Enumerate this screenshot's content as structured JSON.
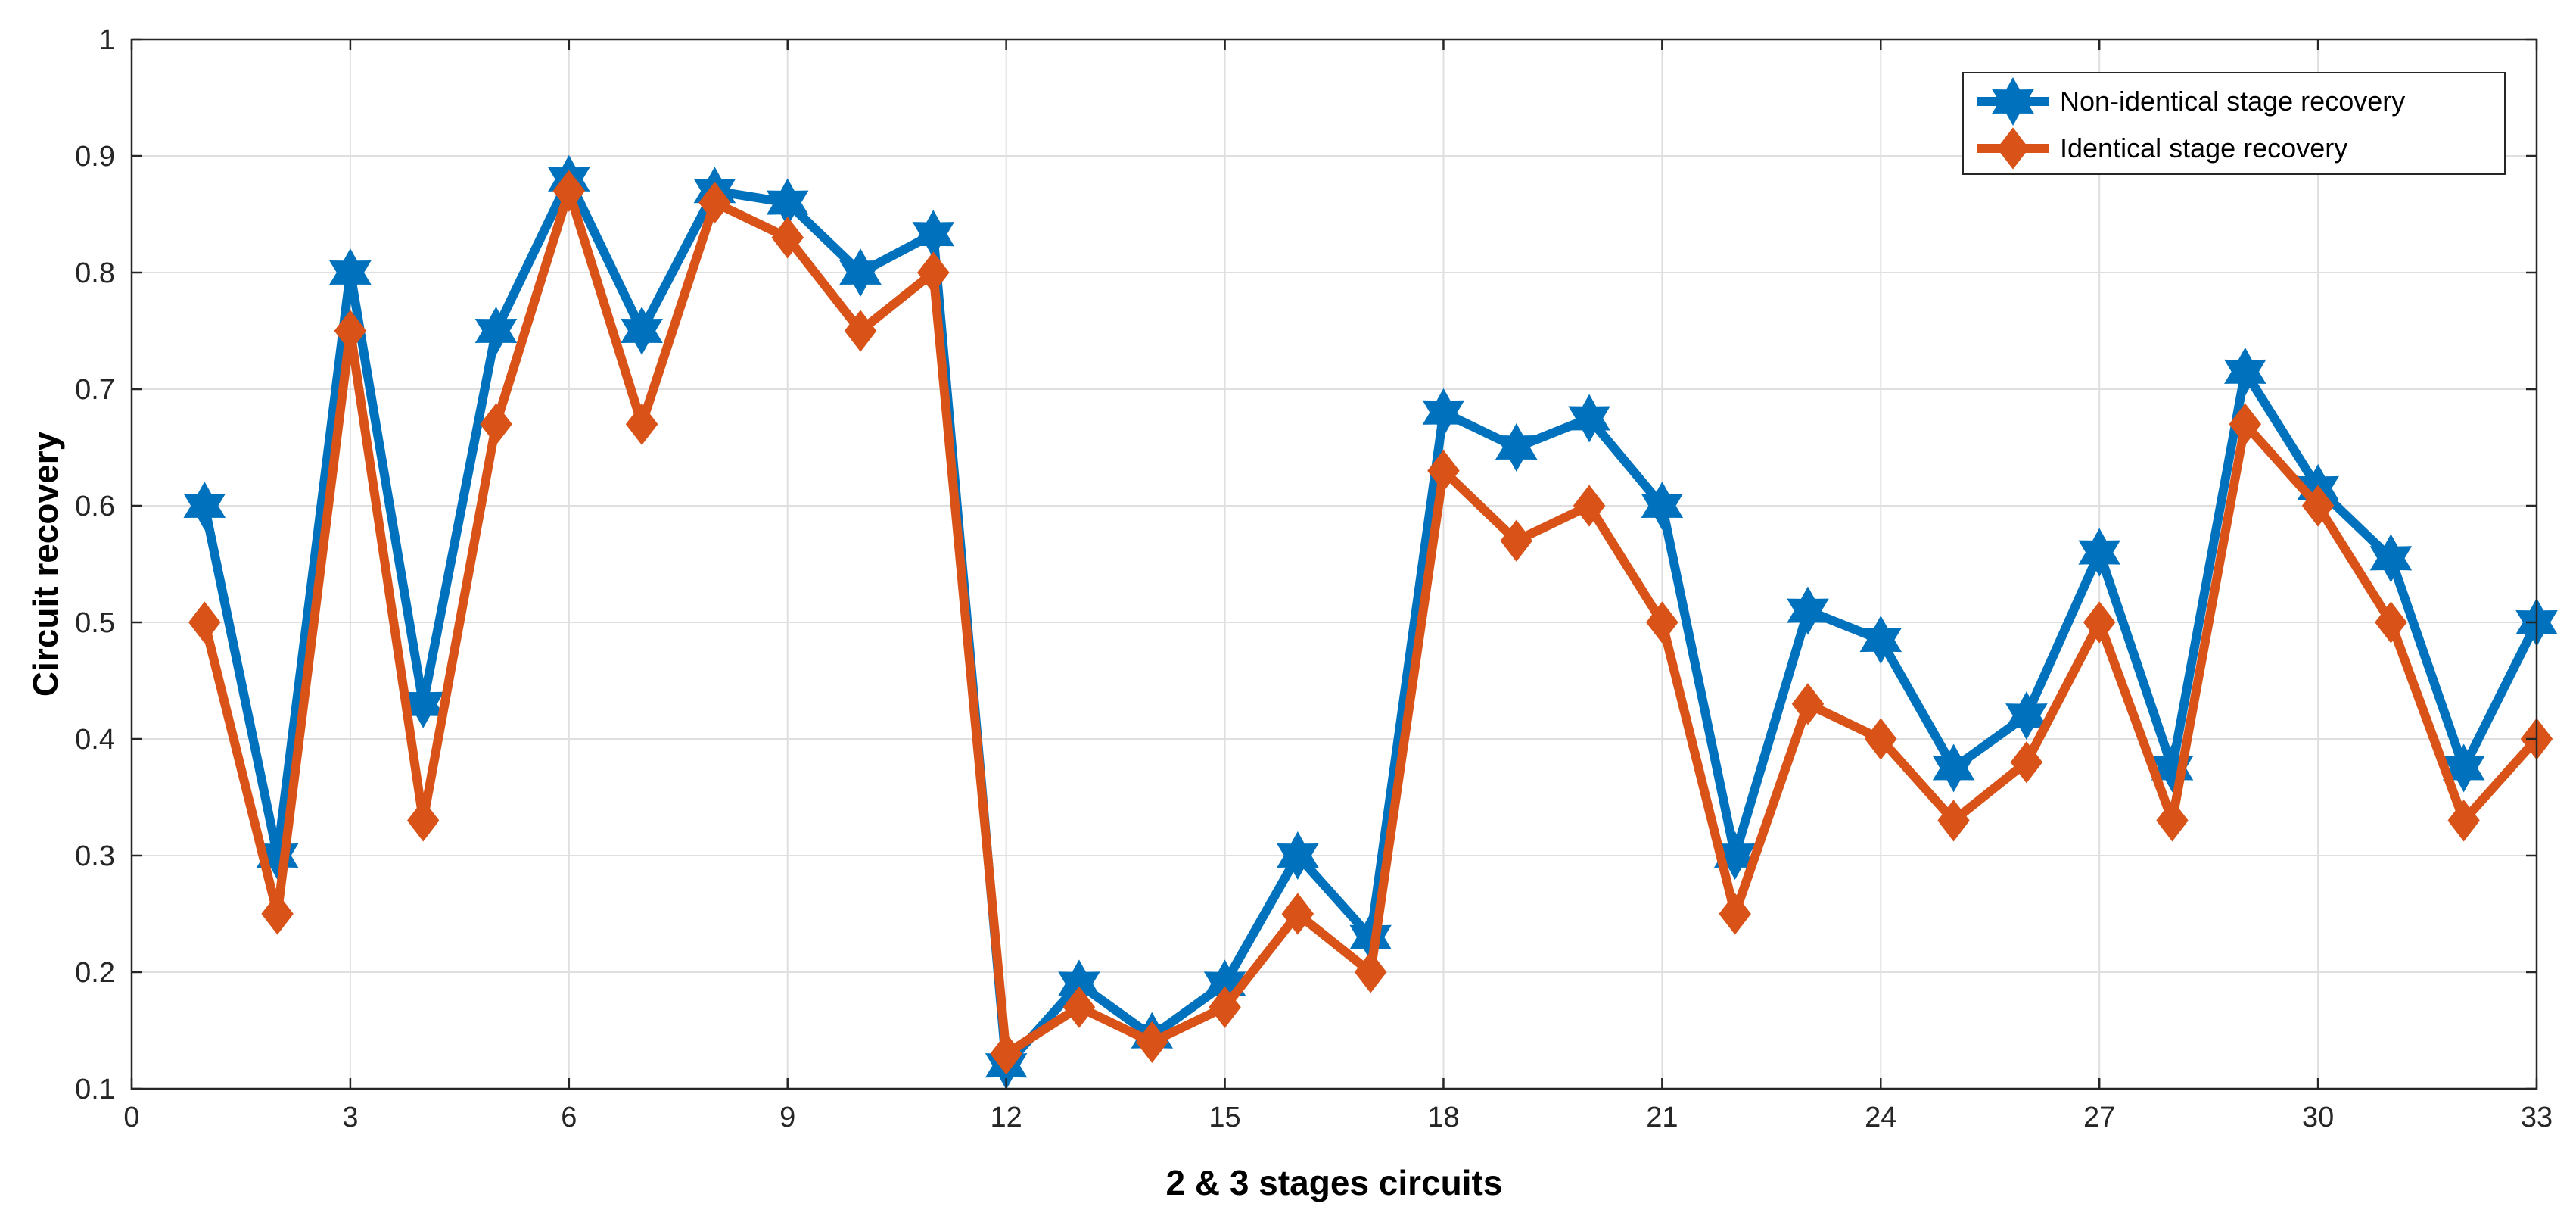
{
  "chart_data": {
    "type": "line",
    "title": "",
    "xlabel": "2 & 3 stages circuits",
    "ylabel": "Circuit recovery",
    "xlim": [
      0,
      33
    ],
    "ylim": [
      0.1,
      1
    ],
    "xticks": [
      0,
      3,
      6,
      9,
      12,
      15,
      18,
      21,
      24,
      27,
      30,
      33
    ],
    "yticks": [
      0.1,
      0.2,
      0.3,
      0.4,
      0.5,
      0.6,
      0.7,
      0.8,
      0.9,
      1
    ],
    "xtick_labels": [
      "0",
      "3",
      "6",
      "9",
      "12",
      "15",
      "18",
      "21",
      "24",
      "27",
      "30",
      "33"
    ],
    "ytick_labels": [
      "0.1",
      "0.2",
      "0.3",
      "0.4",
      "0.5",
      "0.6",
      "0.7",
      "0.8",
      "0.9",
      "1"
    ],
    "grid": true,
    "legend_position": "top-right",
    "x": [
      1,
      2,
      3,
      4,
      5,
      6,
      7,
      8,
      9,
      10,
      11,
      12,
      13,
      14,
      15,
      16,
      17,
      18,
      19,
      20,
      21,
      22,
      23,
      24,
      25,
      26,
      27,
      28,
      29,
      30,
      31,
      32,
      33
    ],
    "series": [
      {
        "name": "Non-identical stage recovery",
        "color": "#0072BD",
        "marker": "hexagram",
        "values": [
          0.6,
          0.3,
          0.8,
          0.43,
          0.75,
          0.88,
          0.75,
          0.87,
          0.86,
          0.8,
          0.833,
          0.12,
          0.19,
          0.145,
          0.19,
          0.3,
          0.23,
          0.68,
          0.65,
          0.675,
          0.6,
          0.3,
          0.51,
          0.485,
          0.375,
          0.42,
          0.56,
          0.375,
          0.715,
          0.615,
          0.555,
          0.375,
          0.5
        ]
      },
      {
        "name": "Identical stage recovery",
        "color": "#D95319",
        "marker": "diamond",
        "values": [
          0.5,
          0.25,
          0.75,
          0.33,
          0.67,
          0.87,
          0.67,
          0.86,
          0.83,
          0.75,
          0.8,
          0.13,
          0.17,
          0.14,
          0.17,
          0.25,
          0.2,
          0.63,
          0.57,
          0.6,
          0.5,
          0.25,
          0.43,
          0.4,
          0.33,
          0.38,
          0.5,
          0.33,
          0.67,
          0.6,
          0.5,
          0.33,
          0.4
        ]
      }
    ]
  }
}
